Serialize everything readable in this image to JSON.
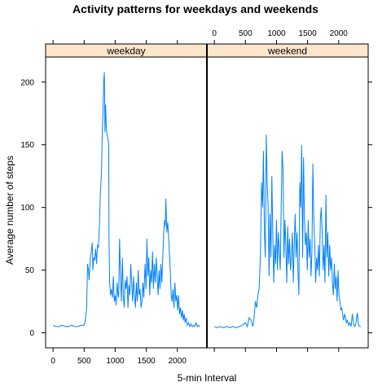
{
  "chart_data": {
    "type": "line",
    "title": "Activity patterns for weekdays and weekends",
    "xlabel": "5-min Interval",
    "ylabel": "Average number of steps",
    "xlim": [
      -120,
      2475
    ],
    "ylim": [
      -12,
      220
    ],
    "x_ticks": [
      0,
      500,
      1000,
      1500,
      2000
    ],
    "y_ticks": [
      0,
      50,
      100,
      150,
      200
    ],
    "grid": false,
    "line_color": "#0080ff",
    "strip_color": "#ffe5cc",
    "panels": [
      {
        "name": "weekday",
        "points": [
          [
            0,
            6
          ],
          [
            50,
            5
          ],
          [
            100,
            5
          ],
          [
            150,
            6
          ],
          [
            200,
            5
          ],
          [
            250,
            5
          ],
          [
            300,
            6
          ],
          [
            350,
            5
          ],
          [
            400,
            5
          ],
          [
            450,
            6
          ],
          [
            500,
            6
          ],
          [
            520,
            10
          ],
          [
            540,
            20
          ],
          [
            555,
            55
          ],
          [
            570,
            50
          ],
          [
            580,
            42
          ],
          [
            600,
            60
          ],
          [
            615,
            65
          ],
          [
            630,
            72
          ],
          [
            640,
            50
          ],
          [
            655,
            60
          ],
          [
            670,
            58
          ],
          [
            685,
            67
          ],
          [
            700,
            55
          ],
          [
            715,
            70
          ],
          [
            730,
            68
          ],
          [
            745,
            85
          ],
          [
            760,
            110
          ],
          [
            780,
            130
          ],
          [
            790,
            155
          ],
          [
            805,
            180
          ],
          [
            815,
            200
          ],
          [
            825,
            208
          ],
          [
            835,
            160
          ],
          [
            845,
            182
          ],
          [
            855,
            165
          ],
          [
            865,
            158
          ],
          [
            880,
            156
          ],
          [
            895,
            150
          ],
          [
            900,
            75
          ],
          [
            910,
            40
          ],
          [
            925,
            30
          ],
          [
            940,
            35
          ],
          [
            955,
            28
          ],
          [
            970,
            45
          ],
          [
            985,
            25
          ],
          [
            1000,
            30
          ],
          [
            1015,
            22
          ],
          [
            1030,
            40
          ],
          [
            1045,
            30
          ],
          [
            1055,
            28
          ],
          [
            1070,
            75
          ],
          [
            1085,
            45
          ],
          [
            1100,
            25
          ],
          [
            1115,
            60
          ],
          [
            1130,
            30
          ],
          [
            1145,
            20
          ],
          [
            1160,
            42
          ],
          [
            1175,
            35
          ],
          [
            1190,
            45
          ],
          [
            1205,
            20
          ],
          [
            1220,
            38
          ],
          [
            1235,
            30
          ],
          [
            1250,
            55
          ],
          [
            1265,
            40
          ],
          [
            1280,
            25
          ],
          [
            1295,
            45
          ],
          [
            1310,
            30
          ],
          [
            1325,
            20
          ],
          [
            1340,
            40
          ],
          [
            1355,
            25
          ],
          [
            1370,
            50
          ],
          [
            1385,
            30
          ],
          [
            1400,
            35
          ],
          [
            1415,
            20
          ],
          [
            1430,
            25
          ],
          [
            1445,
            40
          ],
          [
            1460,
            28
          ],
          [
            1480,
            55
          ],
          [
            1495,
            35
          ],
          [
            1510,
            75
          ],
          [
            1525,
            45
          ],
          [
            1540,
            60
          ],
          [
            1555,
            30
          ],
          [
            1570,
            50
          ],
          [
            1585,
            40
          ],
          [
            1600,
            65
          ],
          [
            1615,
            35
          ],
          [
            1630,
            55
          ],
          [
            1645,
            40
          ],
          [
            1660,
            60
          ],
          [
            1675,
            45
          ],
          [
            1690,
            30
          ],
          [
            1705,
            50
          ],
          [
            1720,
            35
          ],
          [
            1735,
            55
          ],
          [
            1750,
            40
          ],
          [
            1765,
            60
          ],
          [
            1780,
            80
          ],
          [
            1795,
            90
          ],
          [
            1805,
            85
          ],
          [
            1815,
            107
          ],
          [
            1830,
            80
          ],
          [
            1845,
            88
          ],
          [
            1860,
            75
          ],
          [
            1875,
            60
          ],
          [
            1890,
            45
          ],
          [
            1900,
            30
          ],
          [
            1915,
            25
          ],
          [
            1930,
            35
          ],
          [
            1945,
            20
          ],
          [
            1960,
            40
          ],
          [
            1975,
            25
          ],
          [
            1990,
            30
          ],
          [
            2005,
            18
          ],
          [
            2020,
            30
          ],
          [
            2035,
            15
          ],
          [
            2050,
            20
          ],
          [
            2065,
            12
          ],
          [
            2080,
            18
          ],
          [
            2095,
            10
          ],
          [
            2110,
            15
          ],
          [
            2125,
            8
          ],
          [
            2140,
            12
          ],
          [
            2160,
            6
          ],
          [
            2180,
            8
          ],
          [
            2200,
            5
          ],
          [
            2220,
            7
          ],
          [
            2240,
            5
          ],
          [
            2260,
            6
          ],
          [
            2280,
            5
          ],
          [
            2300,
            8
          ],
          [
            2320,
            5
          ],
          [
            2340,
            6
          ],
          [
            2355,
            5
          ]
        ]
      },
      {
        "name": "weekend",
        "points": [
          [
            0,
            5
          ],
          [
            50,
            4
          ],
          [
            100,
            5
          ],
          [
            150,
            4
          ],
          [
            200,
            5
          ],
          [
            250,
            4
          ],
          [
            300,
            5
          ],
          [
            350,
            4
          ],
          [
            400,
            5
          ],
          [
            450,
            6
          ],
          [
            500,
            8
          ],
          [
            530,
            5
          ],
          [
            560,
            12
          ],
          [
            590,
            10
          ],
          [
            620,
            5
          ],
          [
            640,
            12
          ],
          [
            660,
            25
          ],
          [
            680,
            20
          ],
          [
            700,
            30
          ],
          [
            720,
            35
          ],
          [
            740,
            60
          ],
          [
            760,
            120
          ],
          [
            775,
            100
          ],
          [
            790,
            145
          ],
          [
            805,
            80
          ],
          [
            820,
            60
          ],
          [
            835,
            158
          ],
          [
            850,
            120
          ],
          [
            865,
            100
          ],
          [
            880,
            45
          ],
          [
            895,
            95
          ],
          [
            910,
            60
          ],
          [
            925,
            125
          ],
          [
            940,
            80
          ],
          [
            955,
            40
          ],
          [
            970,
            70
          ],
          [
            985,
            55
          ],
          [
            1000,
            90
          ],
          [
            1015,
            50
          ],
          [
            1030,
            80
          ],
          [
            1045,
            65
          ],
          [
            1060,
            50
          ],
          [
            1075,
            100
          ],
          [
            1090,
            145
          ],
          [
            1105,
            130
          ],
          [
            1120,
            60
          ],
          [
            1135,
            90
          ],
          [
            1150,
            70
          ],
          [
            1165,
            40
          ],
          [
            1180,
            85
          ],
          [
            1195,
            55
          ],
          [
            1210,
            75
          ],
          [
            1225,
            50
          ],
          [
            1240,
            60
          ],
          [
            1255,
            80
          ],
          [
            1270,
            40
          ],
          [
            1285,
            70
          ],
          [
            1300,
            95
          ],
          [
            1315,
            60
          ],
          [
            1330,
            80
          ],
          [
            1345,
            50
          ],
          [
            1360,
            30
          ],
          [
            1375,
            120
          ],
          [
            1390,
            100
          ],
          [
            1405,
            150
          ],
          [
            1420,
            60
          ],
          [
            1435,
            140
          ],
          [
            1450,
            90
          ],
          [
            1465,
            70
          ],
          [
            1480,
            80
          ],
          [
            1495,
            50
          ],
          [
            1510,
            90
          ],
          [
            1525,
            60
          ],
          [
            1540,
            75
          ],
          [
            1555,
            45
          ],
          [
            1570,
            65
          ],
          [
            1585,
            135
          ],
          [
            1600,
            90
          ],
          [
            1615,
            70
          ],
          [
            1630,
            40
          ],
          [
            1645,
            60
          ],
          [
            1660,
            50
          ],
          [
            1675,
            70
          ],
          [
            1690,
            45
          ],
          [
            1705,
            90
          ],
          [
            1720,
            100
          ],
          [
            1735,
            80
          ],
          [
            1750,
            50
          ],
          [
            1765,
            70
          ],
          [
            1780,
            40
          ],
          [
            1795,
            110
          ],
          [
            1810,
            60
          ],
          [
            1825,
            80
          ],
          [
            1840,
            45
          ],
          [
            1855,
            70
          ],
          [
            1870,
            50
          ],
          [
            1885,
            60
          ],
          [
            1900,
            40
          ],
          [
            1915,
            30
          ],
          [
            1930,
            55
          ],
          [
            1945,
            35
          ],
          [
            1960,
            45
          ],
          [
            1975,
            25
          ],
          [
            1990,
            50
          ],
          [
            2005,
            30
          ],
          [
            2020,
            25
          ],
          [
            2035,
            18
          ],
          [
            2050,
            20
          ],
          [
            2065,
            14
          ],
          [
            2080,
            10
          ],
          [
            2095,
            15
          ],
          [
            2110,
            12
          ],
          [
            2125,
            8
          ],
          [
            2140,
            10
          ],
          [
            2160,
            6
          ],
          [
            2180,
            8
          ],
          [
            2200,
            5
          ],
          [
            2220,
            15
          ],
          [
            2240,
            7
          ],
          [
            2260,
            5
          ],
          [
            2280,
            8
          ],
          [
            2300,
            16
          ],
          [
            2320,
            6
          ],
          [
            2340,
            5
          ],
          [
            2355,
            5
          ]
        ]
      }
    ]
  }
}
